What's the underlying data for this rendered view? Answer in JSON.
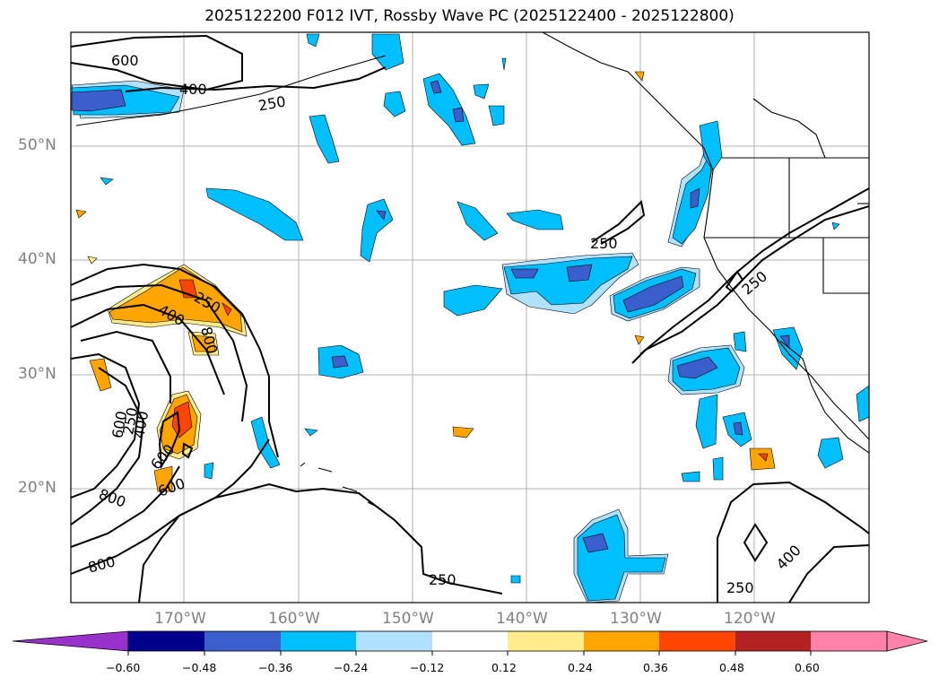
{
  "title": "2025122200 F012 IVT, Rossby Wave PC (2025122400 - 2025122800)",
  "lat_labels": [
    "50°N",
    "40°N",
    "30°N",
    "20°N"
  ],
  "lon_labels": [
    "170°W",
    "160°W",
    "150°W",
    "140°W",
    "130°W",
    "120°W"
  ],
  "contour_labels": [
    "600",
    "400",
    "250",
    "250",
    "250",
    "250",
    "250",
    "250",
    "400",
    "800",
    "600",
    "250",
    "400",
    "600",
    "600",
    "800",
    "800",
    "400",
    "400"
  ],
  "colorbar": {
    "ticks": [
      "−0.60",
      "−0.48",
      "−0.36",
      "−0.24",
      "−0.12",
      "0.12",
      "0.24",
      "0.36",
      "0.48",
      "0.60"
    ],
    "colors": [
      "#9932cc",
      "#00008b",
      "#3a5fcd",
      "#00bfff",
      "#b0e2ff",
      "#ffffff",
      "#ffec8b",
      "#ffa500",
      "#ff4500",
      "#b22222",
      "#ff82ab"
    ]
  },
  "legend_colors": {
    "neg_strong": "#3a5fcd",
    "neg_mid": "#00bfff",
    "neg_weak": "#b0e2ff",
    "pos_weak": "#ffec8b",
    "pos_mid": "#ffa500",
    "pos_strong": "#ff4500"
  }
}
